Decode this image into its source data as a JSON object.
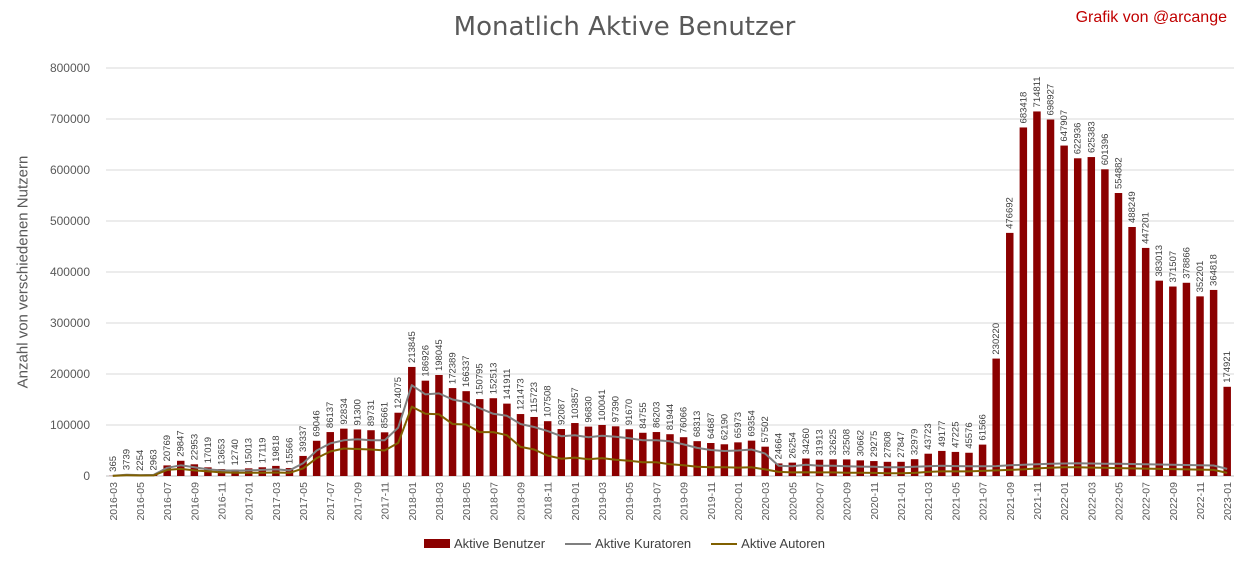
{
  "chart_data": {
    "type": "bar",
    "title": "Monatlich Aktive Benutzer",
    "credit": "Grafik von @arcange",
    "ylabel": "Anzahl von verschiedenen Nutzern",
    "xlabel": "",
    "ylim": [
      0,
      800000
    ],
    "yticks": [
      "0",
      "100000",
      "200000",
      "300000",
      "400000",
      "500000",
      "600000",
      "700000",
      "800000"
    ],
    "ytick_values": [
      0,
      100000,
      200000,
      300000,
      400000,
      500000,
      600000,
      700000,
      800000
    ],
    "grid": true,
    "legend_position": "bottom",
    "categories": [
      "2016-03",
      "2016-04",
      "2016-05",
      "2016-06",
      "2016-07",
      "2016-08",
      "2016-09",
      "2016-10",
      "2016-11",
      "2016-12",
      "2017-01",
      "2017-02",
      "2017-03",
      "2017-04",
      "2017-05",
      "2017-06",
      "2017-07",
      "2017-08",
      "2017-09",
      "2017-10",
      "2017-11",
      "2017-12",
      "2018-01",
      "2018-02",
      "2018-03",
      "2018-04",
      "2018-05",
      "2018-06",
      "2018-07",
      "2018-08",
      "2018-09",
      "2018-10",
      "2018-11",
      "2018-12",
      "2019-01",
      "2019-02",
      "2019-03",
      "2019-04",
      "2019-05",
      "2019-06",
      "2019-07",
      "2019-08",
      "2019-09",
      "2019-10",
      "2019-11",
      "2019-12",
      "2020-01",
      "2020-02",
      "2020-03",
      "2020-04",
      "2020-05",
      "2020-06",
      "2020-07",
      "2020-08",
      "2020-09",
      "2020-10",
      "2020-11",
      "2020-12",
      "2021-01",
      "2021-02",
      "2021-03",
      "2021-04",
      "2021-05",
      "2021-06",
      "2021-07",
      "2021-08",
      "2021-09",
      "2021-10",
      "2021-11",
      "2021-12",
      "2022-01",
      "2022-02",
      "2022-03",
      "2022-04",
      "2022-05",
      "2022-06",
      "2022-07",
      "2022-08",
      "2022-09",
      "2022-10",
      "2022-11",
      "2022-12",
      "2023-01"
    ],
    "xtick_labels": [
      "2016-03",
      "",
      "2016-05",
      "",
      "2016-07",
      "",
      "2016-09",
      "",
      "2016-11",
      "",
      "2017-01",
      "",
      "2017-03",
      "",
      "2017-05",
      "",
      "2017-07",
      "",
      "2017-09",
      "",
      "2017-11",
      "",
      "2018-01",
      "",
      "2018-03",
      "",
      "2018-05",
      "",
      "2018-07",
      "",
      "2018-09",
      "",
      "2018-11",
      "",
      "2019-01",
      "",
      "2019-03",
      "",
      "2019-05",
      "",
      "2019-07",
      "",
      "2019-09",
      "",
      "2019-11",
      "",
      "2020-01",
      "",
      "2020-03",
      "",
      "2020-05",
      "",
      "2020-07",
      "",
      "2020-09",
      "",
      "2020-11",
      "",
      "2021-01",
      "",
      "2021-03",
      "",
      "2021-05",
      "",
      "2021-07",
      "",
      "2021-09",
      "",
      "2021-11",
      "",
      "2022-01",
      "",
      "2022-03",
      "",
      "2022-05",
      "",
      "2022-07",
      "",
      "2022-09",
      "",
      "2022-11",
      "",
      "2023-01"
    ],
    "series": [
      {
        "name": "Aktive Benutzer",
        "kind": "bar",
        "color": "#8b0000",
        "values": [
          365,
          3739,
          2254,
          2963,
          20769,
          29847,
          22953,
          17019,
          13653,
          12740,
          15013,
          17119,
          19818,
          15566,
          39337,
          69046,
          86137,
          92834,
          91300,
          89731,
          85661,
          124075,
          213845,
          186926,
          198045,
          172389,
          166337,
          150795,
          152513,
          141911,
          121473,
          115723,
          107508,
          92087,
          103857,
          96830,
          100041,
          97390,
          91670,
          84755,
          86203,
          81944,
          76066,
          68313,
          64687,
          62190,
          65973,
          69354,
          57502,
          24664,
          26254,
          34260,
          31913,
          32625,
          32508,
          30662,
          29275,
          27808,
          27847,
          32979,
          43723,
          49177,
          47225,
          45576,
          61566,
          230220,
          476692,
          683418,
          714811,
          698927,
          647907,
          622936,
          625383,
          601396,
          554882,
          488249,
          447201,
          383013,
          371507,
          378866,
          352201,
          364818,
          174921
        ],
        "labels": [
          "365",
          "3739",
          "2254",
          "2963",
          "20769",
          "29847",
          "22953",
          "17019",
          "13653",
          "12740",
          "15013",
          "17119",
          "19818",
          "15566",
          "39337",
          "69046",
          "86137",
          "92834",
          "91300",
          "89731",
          "85661",
          "124075",
          "213845",
          "186926",
          "198045",
          "172389",
          "166337",
          "150795",
          "152513",
          "141911",
          "121473",
          "115723",
          "107508",
          "92087",
          "103857",
          "96830",
          "100041",
          "97390",
          "91670",
          "84755",
          "86203",
          "81944",
          "76066",
          "68313",
          "64687",
          "62190",
          "65973",
          "69354",
          "57502",
          "24664",
          "26254",
          "34260",
          "31913",
          "32625",
          "32508",
          "30662",
          "29275",
          "27808",
          "27847",
          "32979",
          "43723",
          "49177",
          "47225",
          "45576",
          "61566",
          "230220",
          "476692",
          "683418",
          "714811",
          "698927",
          "647907",
          "622936",
          "625383",
          "601396",
          "554882",
          "488249",
          "447201",
          "383013",
          "371507",
          "378866",
          "352201",
          "364818",
          "174921"
        ]
      },
      {
        "name": "Aktive Kuratoren",
        "kind": "line",
        "color": "#7f7f7f",
        "values": [
          300,
          2500,
          1800,
          2200,
          16000,
          21000,
          17000,
          13000,
          11000,
          10500,
          11000,
          12000,
          13000,
          11000,
          25000,
          50000,
          64000,
          70000,
          72000,
          70000,
          70000,
          95000,
          178000,
          160000,
          162000,
          150000,
          145000,
          133000,
          122000,
          118000,
          102000,
          96000,
          88000,
          78000,
          80000,
          76000,
          79000,
          77000,
          74000,
          70000,
          70000,
          68000,
          62000,
          55000,
          51000,
          49000,
          50000,
          52000,
          44000,
          20000,
          19000,
          22000,
          20000,
          20000,
          19000,
          18500,
          18000,
          17000,
          17000,
          18000,
          19000,
          20000,
          19500,
          19000,
          19000,
          19500,
          21000,
          22000,
          23000,
          24000,
          24500,
          25000,
          24500,
          24000,
          24000,
          23500,
          23000,
          22500,
          22000,
          21500,
          21000,
          20500,
          14000
        ]
      },
      {
        "name": "Aktive Autoren",
        "kind": "line",
        "color": "#806000",
        "values": [
          200,
          1500,
          1000,
          1200,
          12000,
          14000,
          11000,
          9000,
          7000,
          6500,
          6500,
          6500,
          6800,
          6000,
          15000,
          35000,
          48000,
          54000,
          53000,
          52000,
          50000,
          65000,
          136000,
          122000,
          121000,
          102000,
          101000,
          86000,
          86000,
          80000,
          57000,
          52000,
          40000,
          34000,
          36000,
          33000,
          35000,
          32000,
          30000,
          27000,
          27000,
          23000,
          21000,
          18000,
          17000,
          17000,
          16500,
          17000,
          13000,
          8000,
          7000,
          7500,
          7000,
          7000,
          6500,
          6500,
          6000,
          5500,
          5500,
          6000,
          8000,
          9000,
          9000,
          9000,
          10000,
          11000,
          12000,
          13000,
          15000,
          16000,
          17000,
          17000,
          16500,
          16000,
          15500,
          15000,
          14500,
          14000,
          13500,
          13000,
          12500,
          12000,
          6000
        ]
      }
    ]
  }
}
